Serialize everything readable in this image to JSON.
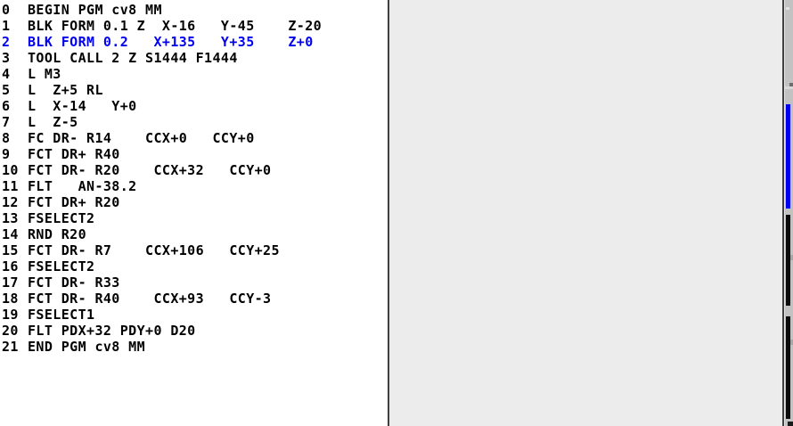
{
  "colors": {
    "accent": "#0000ee",
    "divider": "#404040",
    "panel": "#ececec",
    "track": "#c2c2c2",
    "bar_blue": "#0000f0",
    "bar_black": "#0a0a0a"
  },
  "program": {
    "name": "cv8",
    "unit": "MM",
    "highlighted_block": "2",
    "lines": [
      {
        "number": "0",
        "text": "BEGIN PGM cv8 MM",
        "highlighted": false
      },
      {
        "number": "1",
        "text": "BLK FORM 0.1 Z  X-16   Y-45    Z-20",
        "highlighted": false
      },
      {
        "number": "2",
        "text": "BLK FORM 0.2   X+135   Y+35    Z+0",
        "highlighted": true
      },
      {
        "number": "3",
        "text": "TOOL CALL 2 Z S1444 F1444",
        "highlighted": false
      },
      {
        "number": "4",
        "text": "L M3",
        "highlighted": false
      },
      {
        "number": "5",
        "text": "L  Z+5 RL",
        "highlighted": false
      },
      {
        "number": "6",
        "text": "L  X-14   Y+0",
        "highlighted": false
      },
      {
        "number": "7",
        "text": "L  Z-5",
        "highlighted": false
      },
      {
        "number": "8",
        "text": "FC DR- R14    CCX+0   CCY+0",
        "highlighted": false
      },
      {
        "number": "9",
        "text": "FCT DR+ R40",
        "highlighted": false
      },
      {
        "number": "10",
        "text": "FCT DR- R20    CCX+32   CCY+0",
        "highlighted": false
      },
      {
        "number": "11",
        "text": "FLT   AN-38.2",
        "highlighted": false
      },
      {
        "number": "12",
        "text": "FCT DR+ R20",
        "highlighted": false
      },
      {
        "number": "13",
        "text": "FSELECT2",
        "highlighted": false
      },
      {
        "number": "14",
        "text": "RND R20",
        "highlighted": false
      },
      {
        "number": "15",
        "text": "FCT DR- R7    CCX+106   CCY+25",
        "highlighted": false
      },
      {
        "number": "16",
        "text": "FSELECT2",
        "highlighted": false
      },
      {
        "number": "17",
        "text": "FCT DR- R33",
        "highlighted": false
      },
      {
        "number": "18",
        "text": "FCT DR- R40    CCX+93   CCY-3",
        "highlighted": false
      },
      {
        "number": "19",
        "text": "FSELECT1",
        "highlighted": false
      },
      {
        "number": "20",
        "text": "FLT PDX+32 PDY+0 D20",
        "highlighted": false
      },
      {
        "number": "21",
        "text": "END PGM cv8 MM",
        "highlighted": false
      }
    ]
  }
}
